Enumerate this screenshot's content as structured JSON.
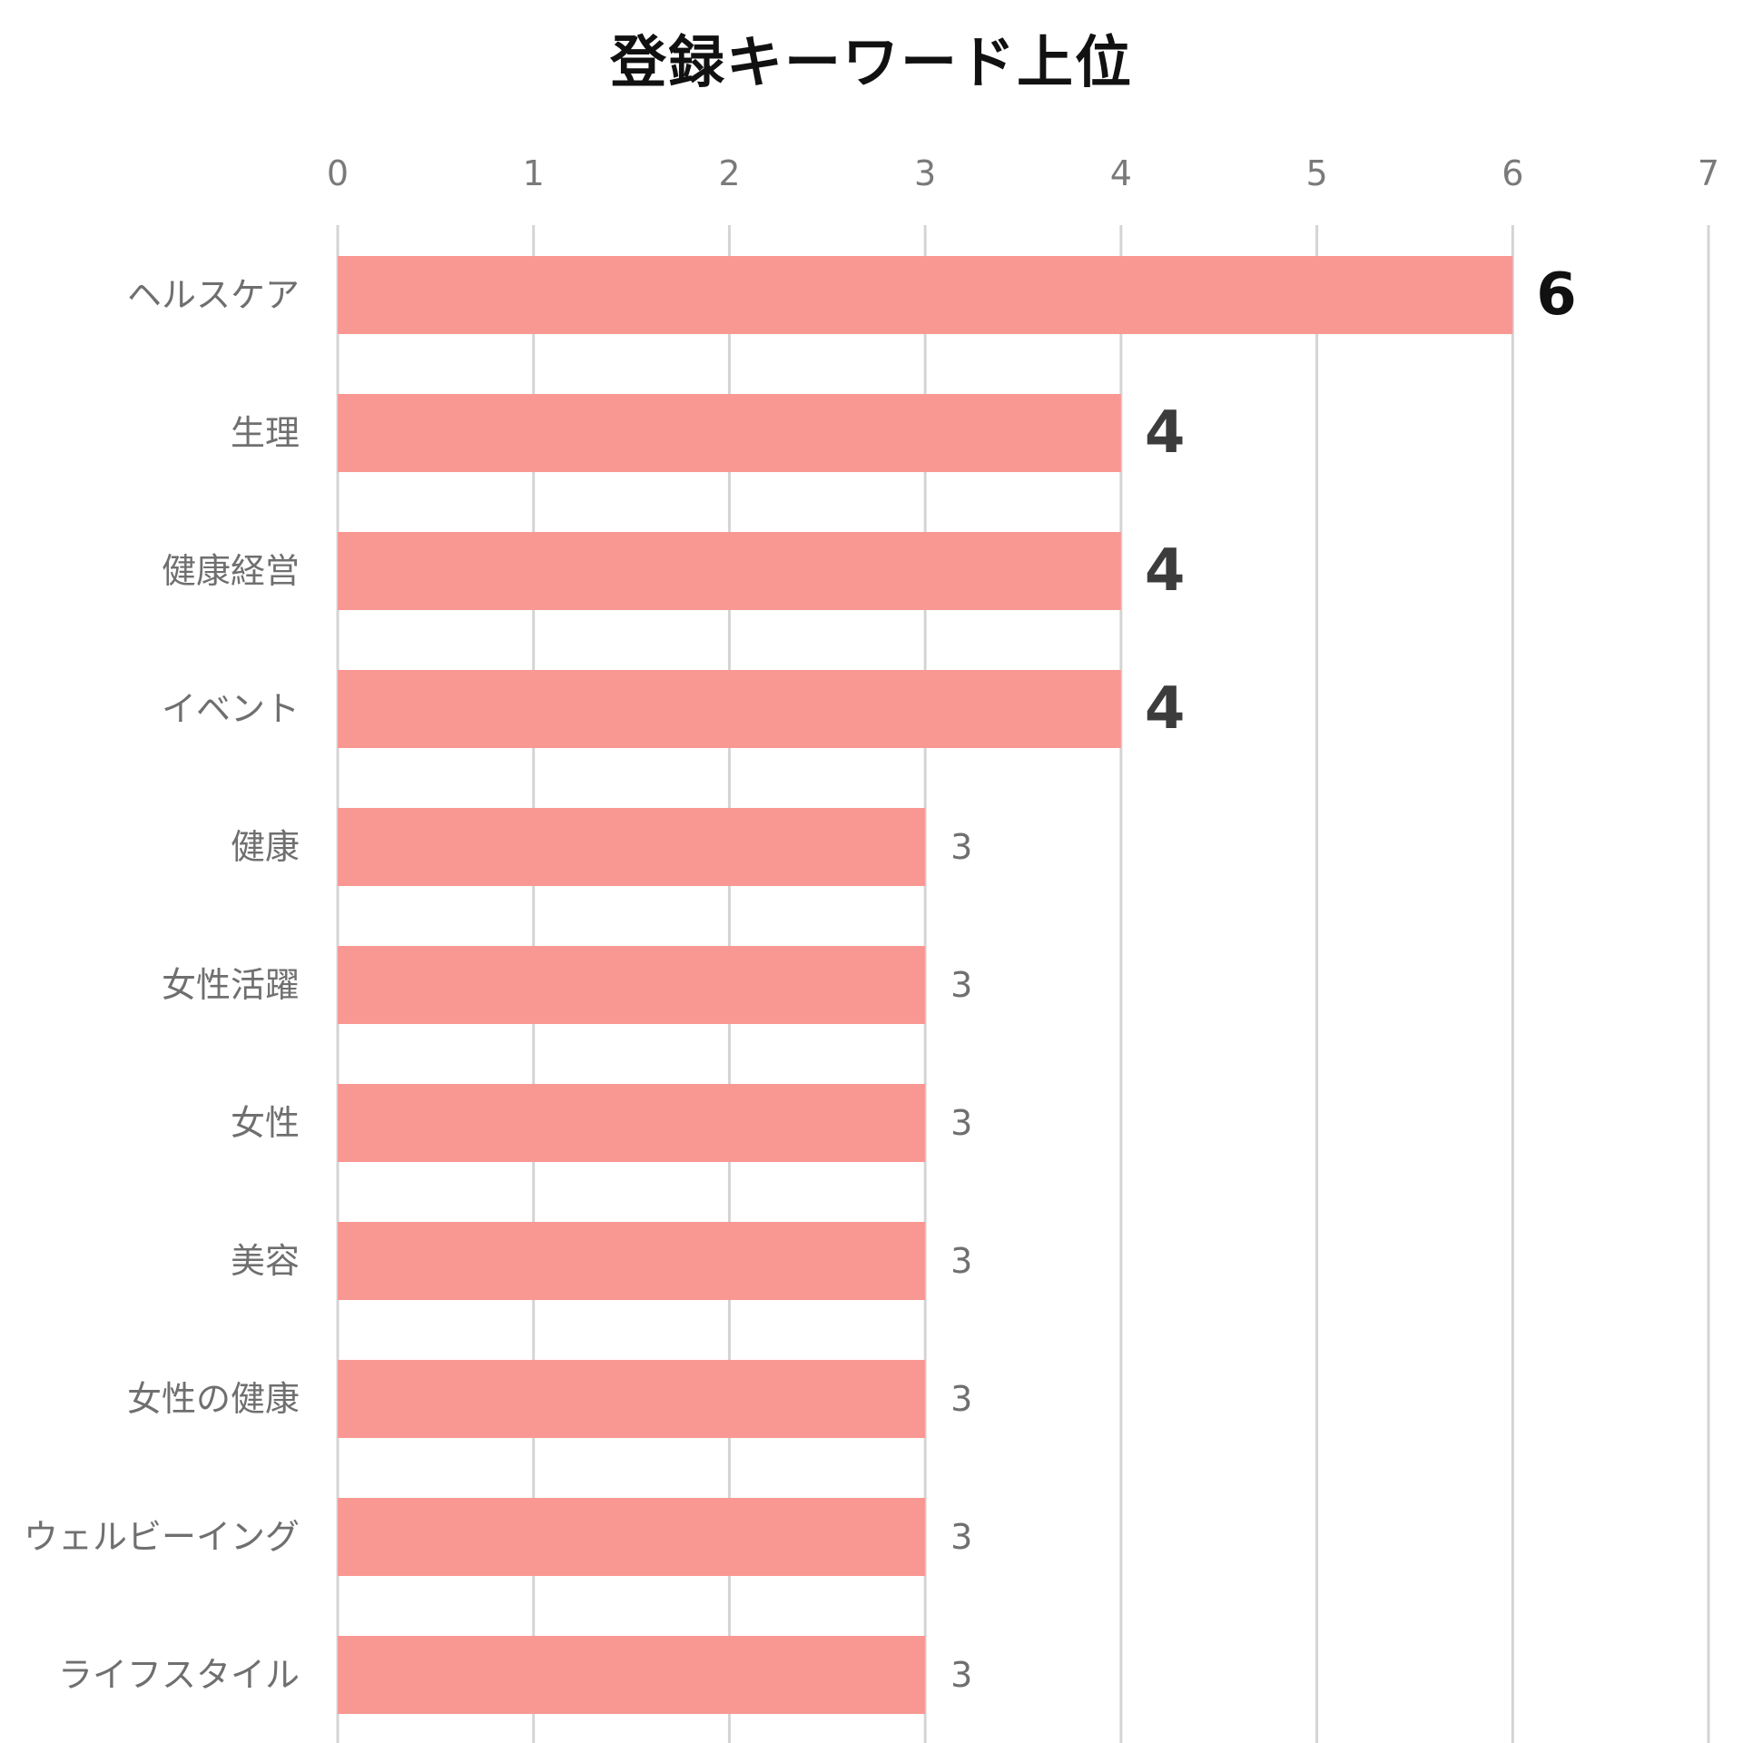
{
  "chart_data": {
    "type": "bar",
    "orientation": "horizontal",
    "title": "登録キーワード上位",
    "xlabel": "",
    "ylabel": "",
    "xlim": [
      0,
      7
    ],
    "x_ticks": [
      "0",
      "1",
      "2",
      "3",
      "4",
      "5",
      "6",
      "7"
    ],
    "x_axis_position": "top",
    "grid": true,
    "legend": "none",
    "categories": [
      "ヘルスケア",
      "生理",
      "健康経営",
      "イベント",
      "健康",
      "女性活躍",
      "女性",
      "美容",
      "女性の健康",
      "ウェルビーイング",
      "ライフスタイル"
    ],
    "values": [
      6,
      4,
      4,
      4,
      3,
      3,
      3,
      3,
      3,
      3,
      3
    ],
    "data_labels": [
      "6",
      "4",
      "4",
      "4",
      "3",
      "3",
      "3",
      "3",
      "3",
      "3",
      "3"
    ],
    "colors": {
      "bar": "#f99893",
      "grid": "#d4d4d4",
      "top_label": "#111111",
      "emphasis_label": "#3c3c3c",
      "regular_label": "#6f6f6f"
    }
  }
}
